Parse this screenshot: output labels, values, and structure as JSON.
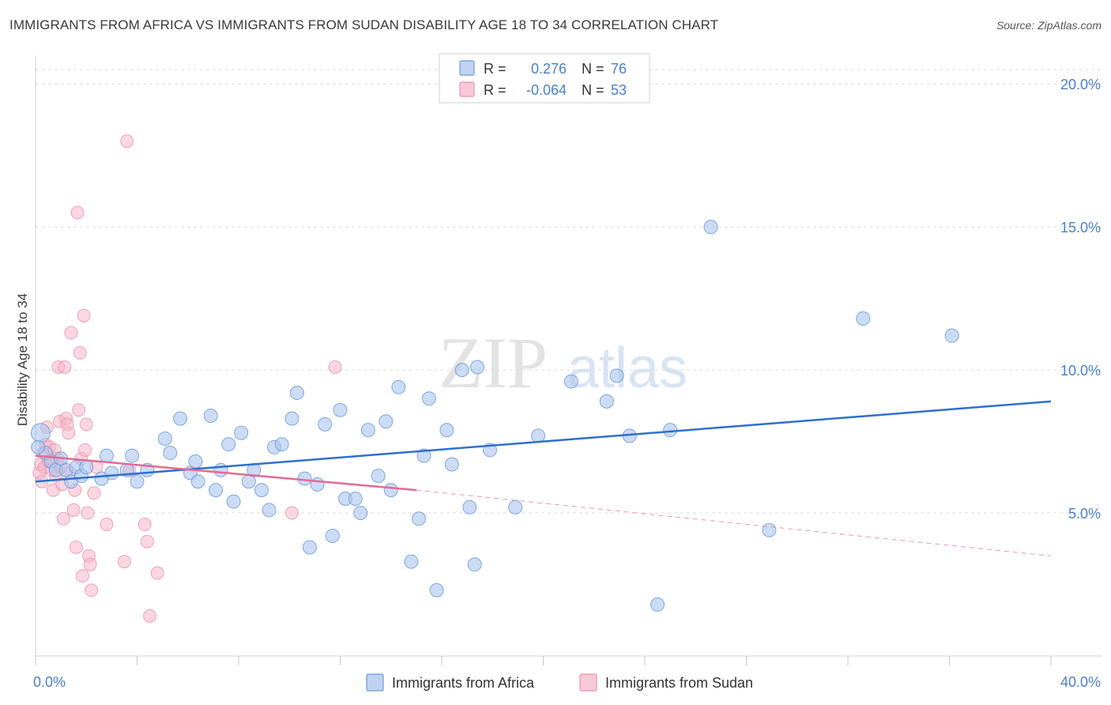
{
  "title": "IMMIGRANTS FROM AFRICA VS IMMIGRANTS FROM SUDAN DISABILITY AGE 18 TO 34 CORRELATION CHART",
  "source": "Source: ZipAtlas.com",
  "watermark": {
    "zip": "ZIP",
    "atlas": "atlas"
  },
  "colors": {
    "africa_fill": "#a9c4ec",
    "africa_stroke": "#6f9bd8",
    "africa_line": "#2f6fce",
    "sudan_fill": "#f5b7c9",
    "sudan_stroke": "#ee8fab",
    "sudan_line": "#e26a95",
    "axis_text": "#4a7fd0",
    "grid": "#dcdcdc"
  },
  "legend_top": [
    {
      "r_label": "R =",
      "r_value": "0.276",
      "n_label": "N =",
      "n_value": "76"
    },
    {
      "r_label": "R =",
      "r_value": "-0.064",
      "n_label": "N =",
      "n_value": "53"
    }
  ],
  "chart_data": {
    "type": "scatter",
    "title": "IMMIGRANTS FROM AFRICA VS IMMIGRANTS FROM SUDAN DISABILITY AGE 18 TO 34 CORRELATION CHART",
    "xlabel": "",
    "ylabel": "Disability Age 18 to 34",
    "xlim": [
      0,
      40
    ],
    "ylim": [
      0,
      21
    ],
    "x_tick_labels": [
      "0.0%",
      "40.0%"
    ],
    "y_ticks": [
      {
        "value": 5,
        "label": "5.0%"
      },
      {
        "value": 10,
        "label": "10.0%"
      },
      {
        "value": 15,
        "label": "15.0%"
      },
      {
        "value": 20,
        "label": "20.0%"
      }
    ],
    "series": [
      {
        "name": "Immigrants from Africa",
        "r": 0.276,
        "n": 76,
        "trend": {
          "x0": 0,
          "y0": 6.1,
          "x1": 40,
          "y1": 8.9
        },
        "points": [
          [
            0.2,
            7.8
          ],
          [
            0.4,
            7.1
          ],
          [
            0.6,
            6.8
          ],
          [
            0.8,
            6.5
          ],
          [
            1.0,
            6.9
          ],
          [
            1.2,
            6.5
          ],
          [
            1.4,
            6.1
          ],
          [
            1.6,
            6.6
          ],
          [
            1.8,
            6.3
          ],
          [
            2.0,
            6.6
          ],
          [
            2.6,
            6.2
          ],
          [
            2.8,
            7.0
          ],
          [
            3.0,
            6.4
          ],
          [
            3.6,
            6.5
          ],
          [
            3.8,
            7.0
          ],
          [
            4.0,
            6.1
          ],
          [
            4.4,
            6.5
          ],
          [
            5.1,
            7.6
          ],
          [
            5.3,
            7.1
          ],
          [
            5.7,
            8.3
          ],
          [
            6.1,
            6.4
          ],
          [
            6.3,
            6.8
          ],
          [
            6.4,
            6.1
          ],
          [
            6.9,
            8.4
          ],
          [
            7.1,
            5.8
          ],
          [
            7.3,
            6.5
          ],
          [
            7.6,
            7.4
          ],
          [
            7.8,
            5.4
          ],
          [
            8.1,
            7.8
          ],
          [
            8.4,
            6.1
          ],
          [
            8.6,
            6.5
          ],
          [
            8.9,
            5.8
          ],
          [
            9.2,
            5.1
          ],
          [
            9.4,
            7.3
          ],
          [
            9.7,
            7.4
          ],
          [
            10.1,
            8.3
          ],
          [
            10.3,
            9.2
          ],
          [
            10.6,
            6.2
          ],
          [
            10.8,
            3.8
          ],
          [
            11.1,
            6.0
          ],
          [
            11.4,
            8.1
          ],
          [
            11.7,
            4.2
          ],
          [
            12.0,
            8.6
          ],
          [
            12.2,
            5.5
          ],
          [
            12.6,
            5.5
          ],
          [
            12.8,
            5.0
          ],
          [
            13.1,
            7.9
          ],
          [
            13.5,
            6.3
          ],
          [
            13.8,
            8.2
          ],
          [
            14.0,
            5.8
          ],
          [
            14.3,
            9.4
          ],
          [
            14.8,
            3.3
          ],
          [
            15.1,
            4.8
          ],
          [
            15.3,
            7.0
          ],
          [
            15.5,
            9.0
          ],
          [
            15.8,
            2.3
          ],
          [
            16.2,
            7.9
          ],
          [
            16.4,
            6.7
          ],
          [
            16.8,
            10.0
          ],
          [
            17.1,
            5.2
          ],
          [
            17.3,
            3.2
          ],
          [
            17.4,
            10.1
          ],
          [
            17.9,
            7.2
          ],
          [
            18.9,
            5.2
          ],
          [
            19.8,
            7.7
          ],
          [
            21.1,
            9.6
          ],
          [
            22.5,
            8.9
          ],
          [
            22.9,
            9.8
          ],
          [
            23.4,
            7.7
          ],
          [
            24.5,
            1.8
          ],
          [
            25.0,
            7.9
          ],
          [
            26.6,
            15.0
          ],
          [
            28.9,
            4.4
          ],
          [
            32.6,
            11.8
          ],
          [
            36.1,
            11.2
          ],
          [
            0.1,
            7.3
          ]
        ]
      },
      {
        "name": "Immigrants from Sudan",
        "r": -0.064,
        "n": 53,
        "trend": {
          "x0": 0,
          "y0": 7.0,
          "x1": 15.0,
          "y1": 5.8
        },
        "trend_extension": {
          "x0": 15.0,
          "y0": 5.8,
          "x1": 40,
          "y1": 3.5
        },
        "points": [
          [
            0.15,
            6.4
          ],
          [
            0.2,
            6.7
          ],
          [
            0.25,
            6.1
          ],
          [
            0.3,
            7.1
          ],
          [
            0.35,
            6.6
          ],
          [
            0.4,
            7.4
          ],
          [
            0.45,
            8.0
          ],
          [
            0.5,
            6.8
          ],
          [
            0.55,
            7.3
          ],
          [
            0.6,
            6.9
          ],
          [
            0.65,
            6.5
          ],
          [
            0.7,
            5.8
          ],
          [
            0.75,
            7.2
          ],
          [
            0.8,
            6.3
          ],
          [
            0.85,
            6.9
          ],
          [
            0.9,
            10.1
          ],
          [
            0.95,
            8.2
          ],
          [
            1.0,
            6.6
          ],
          [
            1.05,
            6.0
          ],
          [
            1.1,
            4.8
          ],
          [
            1.15,
            10.1
          ],
          [
            1.2,
            8.3
          ],
          [
            1.25,
            8.1
          ],
          [
            1.3,
            7.8
          ],
          [
            1.35,
            6.4
          ],
          [
            1.4,
            11.3
          ],
          [
            1.5,
            5.1
          ],
          [
            1.55,
            5.8
          ],
          [
            1.6,
            3.8
          ],
          [
            1.65,
            15.5
          ],
          [
            1.7,
            8.6
          ],
          [
            1.75,
            10.6
          ],
          [
            1.8,
            6.9
          ],
          [
            1.85,
            2.8
          ],
          [
            1.9,
            11.9
          ],
          [
            1.95,
            7.2
          ],
          [
            2.0,
            8.1
          ],
          [
            2.05,
            5.0
          ],
          [
            2.1,
            3.5
          ],
          [
            2.15,
            3.2
          ],
          [
            2.2,
            2.3
          ],
          [
            2.3,
            5.7
          ],
          [
            2.4,
            6.6
          ],
          [
            2.8,
            4.6
          ],
          [
            3.6,
            18.0
          ],
          [
            3.5,
            3.3
          ],
          [
            3.7,
            6.5
          ],
          [
            4.3,
            4.6
          ],
          [
            4.4,
            4.0
          ],
          [
            4.5,
            1.4
          ],
          [
            4.8,
            2.9
          ],
          [
            10.1,
            5.0
          ],
          [
            11.8,
            10.1
          ]
        ]
      }
    ]
  },
  "legend_bottom": [
    {
      "label": "Immigrants from Africa"
    },
    {
      "label": "Immigrants from Sudan"
    }
  ]
}
